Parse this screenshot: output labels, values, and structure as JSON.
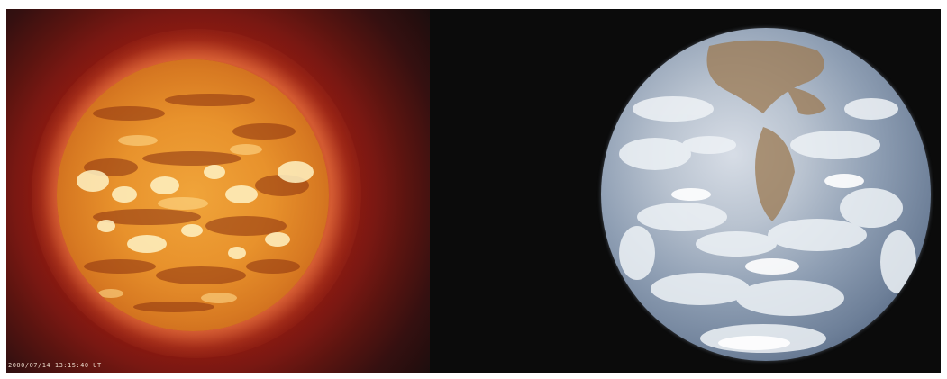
{
  "image": {
    "left_subject": "sun",
    "right_subject": "earth",
    "timestamp_text": "2000/07/14 13:15:40 UT"
  },
  "colors": {
    "background": "#0b0b0b",
    "sun_corona": "#b52512",
    "sun_surface": "#e8922c",
    "earth_ocean": "#4b5d78",
    "earth_clouds": "#e6ebf0",
    "earth_land": "#9c7a52"
  }
}
